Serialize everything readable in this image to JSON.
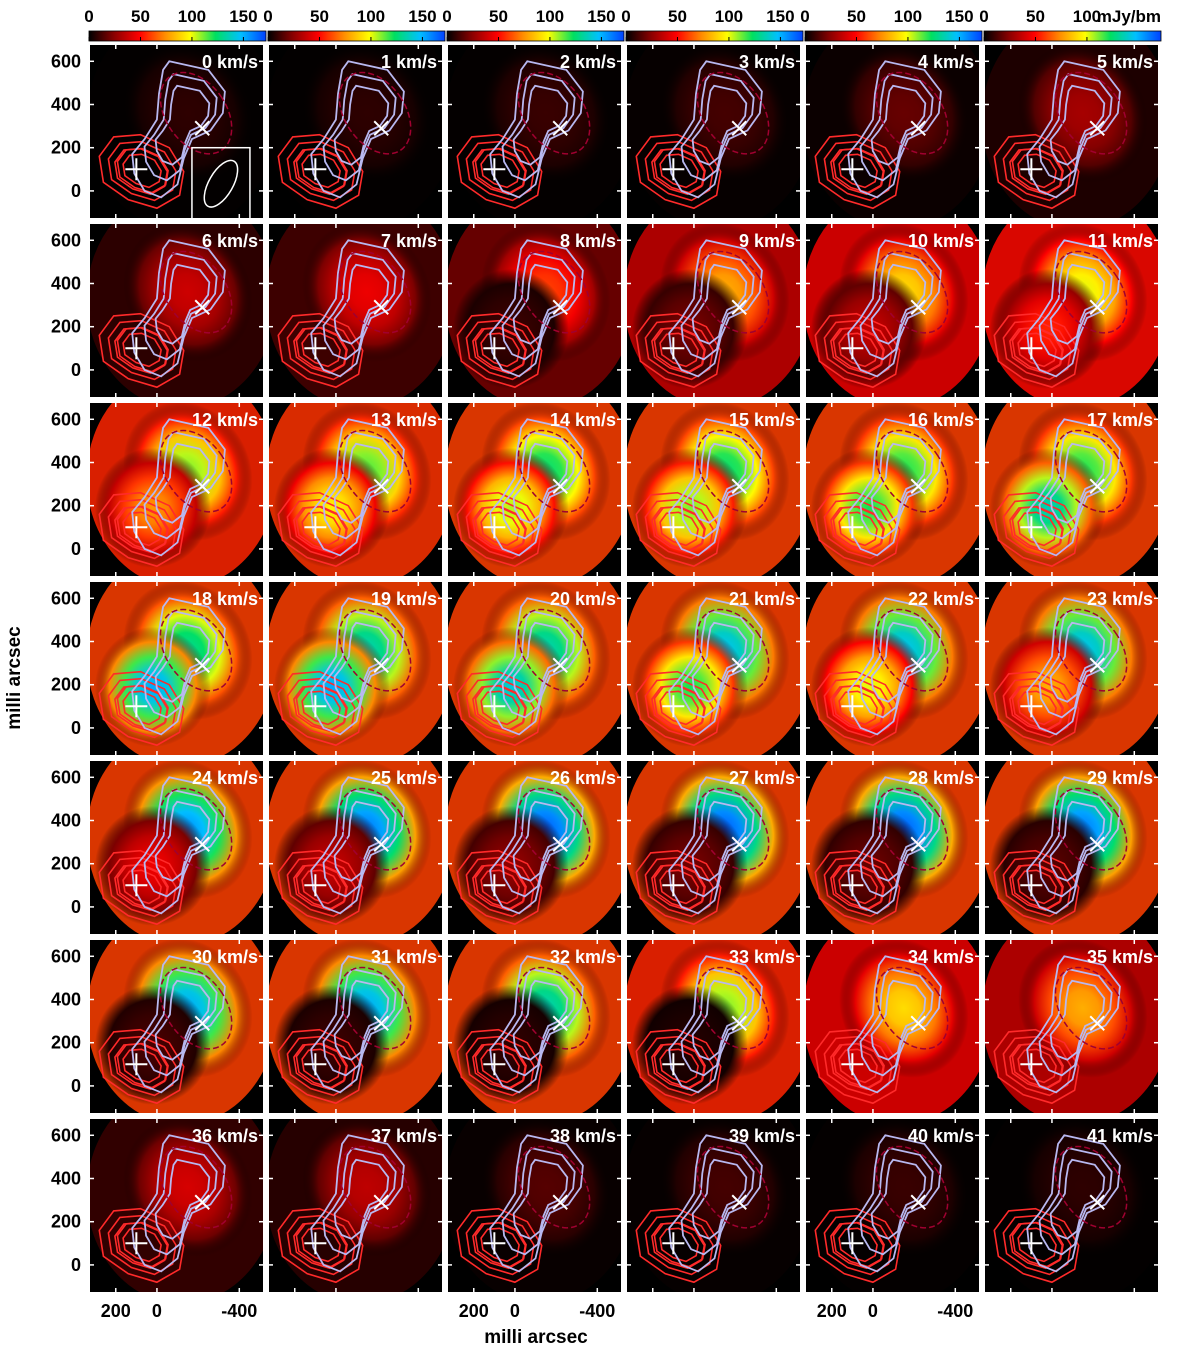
{
  "chart_data": {
    "type": "heatmap",
    "layout": {
      "rows": 7,
      "cols": 6
    },
    "panels_velocity_kms": [
      0,
      1,
      2,
      3,
      4,
      5,
      6,
      7,
      8,
      9,
      10,
      11,
      12,
      13,
      14,
      15,
      16,
      17,
      18,
      19,
      20,
      21,
      22,
      23,
      24,
      25,
      26,
      27,
      28,
      29,
      30,
      31,
      32,
      33,
      34,
      35,
      36,
      37,
      38,
      39,
      40,
      41
    ],
    "velocity_unit": "km/s",
    "panel_peak_mJy": [
      8,
      8,
      10,
      12,
      18,
      30,
      38,
      45,
      60,
      80,
      90,
      100,
      110,
      115,
      125,
      125,
      120,
      120,
      130,
      135,
      135,
      145,
      145,
      145,
      155,
      160,
      165,
      165,
      165,
      160,
      150,
      150,
      135,
      110,
      90,
      80,
      40,
      35,
      15,
      12,
      10,
      8
    ],
    "component_b_mJy": [
      2,
      2,
      2,
      2,
      2,
      2,
      3,
      5,
      10,
      20,
      35,
      55,
      75,
      95,
      105,
      110,
      120,
      135,
      150,
      150,
      140,
      120,
      100,
      80,
      45,
      35,
      25,
      20,
      18,
      15,
      12,
      10,
      8,
      6,
      4,
      3,
      2,
      2,
      2,
      2,
      2,
      2
    ],
    "colorbar": {
      "ticks": [
        "0",
        "50",
        "100",
        "150"
      ],
      "last_ticks": [
        "0",
        "50",
        "100"
      ],
      "unit": "mJy/bm",
      "range": [
        0,
        170
      ],
      "colormap": [
        "#000000",
        "#8b0000",
        "#ff0000",
        "#ff8c00",
        "#ffff00",
        "#00e060",
        "#00c0ff",
        "#0040ff"
      ]
    },
    "xlabel": "milli arcsec",
    "ylabel": "milli arcsec",
    "x_ticks": [
      "200",
      "0",
      "-400"
    ],
    "x_ticks_labeled_columns": [
      0,
      2,
      4
    ],
    "y_ticks": [
      "600",
      "400",
      "200",
      "0"
    ],
    "xlim": [
      330,
      -520
    ],
    "ylim": [
      -130,
      680
    ],
    "markers": {
      "plus": {
        "x": 100,
        "y": 100
      },
      "cross": {
        "x": -220,
        "y": 290
      }
    },
    "beam": {
      "major": 140,
      "minor": 75,
      "pa_deg": -30
    },
    "colors": {
      "contour_continuum": "#ff2a2a",
      "contour_integrated": "#b8b8f0",
      "contour_dashed": "#a00030",
      "marker": "#ffffff",
      "panel_border": "#ffffff"
    }
  }
}
